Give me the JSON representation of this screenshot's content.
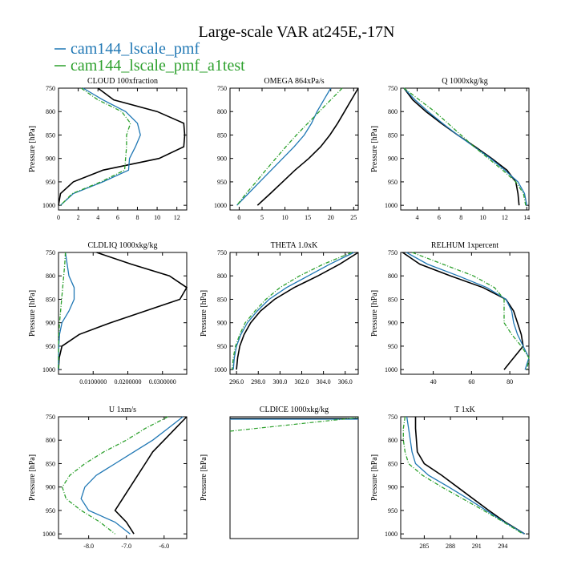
{
  "colors": {
    "black": "#000000",
    "blue": "#1f77b4",
    "green": "#2ca02c"
  },
  "chart_data": {
    "type": "line",
    "title": "Large-scale VAR at245E,-17N",
    "legend": [
      {
        "name": "cam144_lscale_pmf",
        "color": "#1f77b4"
      },
      {
        "name": "cam144_lscale_pmf_a1test",
        "color": "#2ca02c"
      }
    ],
    "pressure_levels": [
      750,
      775,
      800,
      825,
      850,
      875,
      900,
      925,
      950,
      975,
      1000
    ],
    "panels": [
      {
        "title": "CLOUD  100xfraction",
        "ylabel": "Pressure [hPa]",
        "xlim": [
          0,
          13
        ],
        "ylim": [
          750,
          1010
        ],
        "xticks": [
          0,
          2,
          4,
          6,
          8,
          10,
          12
        ],
        "xticklabels": [
          "0",
          "2",
          "4",
          "6",
          "8",
          "10",
          "12"
        ],
        "yticks": [
          750,
          800,
          850,
          900,
          950,
          1000
        ],
        "series": [
          {
            "name": "black",
            "color": "#000000",
            "dashed": false,
            "x": [
              4.0,
              5.6,
              10.0,
              12.7,
              12.8,
              12.7,
              10.2,
              4.5,
              1.5,
              0.2,
              0.0
            ]
          },
          {
            "name": "cam144_lscale_pmf",
            "color": "#1f77b4",
            "dashed": false,
            "x": [
              2.5,
              4.5,
              6.8,
              8.0,
              8.3,
              7.8,
              7.2,
              7.1,
              4.5,
              1.5,
              0.2
            ]
          },
          {
            "name": "cam144_lscale_pmf_a1test",
            "color": "#2ca02c",
            "dashed": true,
            "x": [
              2.3,
              4.0,
              6.4,
              7.3,
              6.9,
              6.9,
              6.8,
              6.7,
              4.3,
              1.4,
              0.2
            ]
          }
        ]
      },
      {
        "title": "OMEGA  864xPa/s",
        "ylabel": "",
        "xlim": [
          -2,
          26
        ],
        "ylim": [
          750,
          1010
        ],
        "xticks": [
          0,
          5,
          10,
          15,
          20,
          25
        ],
        "xticklabels": [
          "0",
          "5",
          "10",
          "15",
          "20",
          "25"
        ],
        "yticks": [
          750,
          800,
          850,
          900,
          950,
          1000
        ],
        "series": [
          {
            "name": "black",
            "color": "#000000",
            "dashed": false,
            "x": [
              26.0,
              24.5,
              23.0,
              21.5,
              19.8,
              17.8,
              15.2,
              12.2,
              9.5,
              6.8,
              4.0
            ]
          },
          {
            "name": "cam144_lscale_pmf",
            "color": "#1f77b4",
            "dashed": false,
            "x": [
              20.0,
              18.5,
              17.0,
              15.8,
              14.2,
              12.0,
              9.5,
              7.0,
              4.5,
              2.0,
              -0.5
            ]
          },
          {
            "name": "cam144_lscale_pmf_a1test",
            "color": "#2ca02c",
            "dashed": true,
            "x": [
              22.5,
              20.0,
              17.5,
              15.0,
              12.5,
              10.2,
              8.0,
              5.8,
              3.7,
              1.5,
              -0.5
            ]
          }
        ]
      },
      {
        "title": "Q  1000xkg/kg",
        "ylabel": "Pressure [hPa]",
        "xlim": [
          2.5,
          14.2
        ],
        "ylim": [
          750,
          1010
        ],
        "xticks": [
          4,
          6,
          8,
          10,
          12,
          14
        ],
        "xticklabels": [
          "4",
          "6",
          "8",
          "10",
          "12",
          "14"
        ],
        "yticks": [
          750,
          800,
          850,
          900,
          950,
          1000
        ],
        "series": [
          {
            "name": "black",
            "color": "#000000",
            "dashed": false,
            "x": [
              2.8,
              3.6,
              4.8,
              6.2,
              7.7,
              9.3,
              10.8,
              12.2,
              13.0,
              13.2,
              13.3
            ]
          },
          {
            "name": "cam144_lscale_pmf",
            "color": "#1f77b4",
            "dashed": false,
            "x": [
              2.8,
              3.8,
              5.0,
              6.3,
              7.7,
              9.2,
              10.7,
              12.0,
              13.2,
              13.8,
              14.0
            ]
          },
          {
            "name": "cam144_lscale_pmf_a1test",
            "color": "#2ca02c",
            "dashed": true,
            "x": [
              2.8,
              4.2,
              5.6,
              6.8,
              8.0,
              9.2,
              10.5,
              11.8,
              13.0,
              13.7,
              13.9
            ]
          }
        ]
      },
      {
        "title": "CLDLIQ  1000xkg/kg",
        "ylabel": "Pressure [hPa]",
        "xlim": [
          0,
          0.037
        ],
        "ylim": [
          750,
          1010
        ],
        "xticks": [
          0.01,
          0.02,
          0.03
        ],
        "xticklabels": [
          "0.0100000",
          "0.0200000",
          "0.0300000"
        ],
        "yticks": [
          750,
          800,
          850,
          900,
          950,
          1000
        ],
        "series": [
          {
            "name": "black",
            "color": "#000000",
            "dashed": false,
            "x": [
              0.011,
              0.021,
              0.032,
              0.037,
              0.035,
              0.025,
              0.015,
              0.006,
              0.001,
              0.0002,
              0.0
            ]
          },
          {
            "name": "cam144_lscale_pmf",
            "color": "#1f77b4",
            "dashed": false,
            "x": [
              0.002,
              0.0025,
              0.003,
              0.0045,
              0.0045,
              0.003,
              0.001,
              0.0003,
              0.0001,
              0.0,
              0.0
            ]
          },
          {
            "name": "cam144_lscale_pmf_a1test",
            "color": "#2ca02c",
            "dashed": true,
            "x": [
              0.002,
              0.0018,
              0.0015,
              0.0012,
              0.0009,
              0.0006,
              0.0003,
              0.0001,
              0.0,
              0.0,
              0.0
            ]
          }
        ]
      },
      {
        "title": "THETA  1.0xK",
        "ylabel": "Pressure [hPa]",
        "xlim": [
          295.4,
          307.2
        ],
        "ylim": [
          750,
          1010
        ],
        "xticks": [
          296,
          298,
          300,
          302,
          304,
          306
        ],
        "xticklabels": [
          "296.0",
          "298.0",
          "300.0",
          "302.0",
          "304.0",
          "306.0"
        ],
        "yticks": [
          750,
          800,
          850,
          900,
          950,
          1000
        ],
        "series": [
          {
            "name": "black",
            "color": "#000000",
            "dashed": false,
            "x": [
              307.2,
              305.5,
              303.5,
              301.3,
              299.5,
              298.2,
              297.3,
              296.7,
              296.3,
              296.1,
              296.0
            ]
          },
          {
            "name": "cam144_lscale_pmf",
            "color": "#1f77b4",
            "dashed": false,
            "x": [
              306.8,
              304.6,
              302.6,
              300.6,
              299.0,
              297.9,
              297.0,
              296.4,
              296.0,
              295.8,
              295.7
            ]
          },
          {
            "name": "cam144_lscale_pmf_a1test",
            "color": "#2ca02c",
            "dashed": true,
            "x": [
              306.6,
              304.0,
              301.8,
              300.0,
              298.7,
              297.7,
              296.8,
              296.3,
              295.9,
              295.7,
              295.6
            ]
          }
        ]
      },
      {
        "title": "RELHUM  1xpercent",
        "ylabel": "Pressure [hPa]",
        "xlim": [
          23,
          90
        ],
        "ylim": [
          750,
          1010
        ],
        "xticks": [
          40,
          60,
          80
        ],
        "xticklabels": [
          "40",
          "60",
          "80"
        ],
        "yticks": [
          750,
          800,
          850,
          900,
          950,
          1000
        ],
        "series": [
          {
            "name": "black",
            "color": "#000000",
            "dashed": false,
            "x": [
              24,
              33,
              49,
              66,
              78,
              82,
              84,
              86,
              87,
              82,
              77
            ]
          },
          {
            "name": "cam144_lscale_pmf",
            "color": "#1f77b4",
            "dashed": false,
            "x": [
              26,
              37,
              53,
              68,
              78,
              81,
              82,
              84,
              87,
              90,
              88
            ]
          },
          {
            "name": "cam144_lscale_pmf_a1test",
            "color": "#2ca02c",
            "dashed": true,
            "x": [
              29,
              45,
              61,
              72,
              77,
              77,
              77,
              81,
              86,
              90,
              89
            ]
          }
        ]
      },
      {
        "title": "U  1xm/s",
        "ylabel": "Pressure [hPa]",
        "xlim": [
          -8.8,
          -5.4
        ],
        "ylim": [
          750,
          1010
        ],
        "xticks": [
          -8,
          -7,
          -6
        ],
        "xticklabels": [
          "-8.0",
          "-7.0",
          "-6.0"
        ],
        "yticks": [
          750,
          800,
          850,
          900,
          950,
          1000
        ],
        "series": [
          {
            "name": "black",
            "color": "#000000",
            "dashed": false,
            "x": [
              -5.4,
              -5.7,
              -6.0,
              -6.3,
              -6.5,
              -6.7,
              -6.9,
              -7.1,
              -7.3,
              -7.0,
              -6.8
            ]
          },
          {
            "name": "cam144_lscale_pmf",
            "color": "#1f77b4",
            "dashed": false,
            "x": [
              -5.5,
              -5.9,
              -6.3,
              -6.8,
              -7.3,
              -7.8,
              -8.1,
              -8.2,
              -8.0,
              -7.3,
              -6.9
            ]
          },
          {
            "name": "cam144_lscale_pmf_a1test",
            "color": "#2ca02c",
            "dashed": true,
            "x": [
              -5.9,
              -6.5,
              -7.0,
              -7.6,
              -8.1,
              -8.5,
              -8.7,
              -8.6,
              -8.2,
              -7.7,
              -7.3
            ]
          }
        ]
      },
      {
        "title": "CLDICE  1000xkg/kg",
        "ylabel": "Pressure [hPa]",
        "xlim": [
          0,
          1
        ],
        "ylim": [
          750,
          1010
        ],
        "xticks": [],
        "xticklabels": [],
        "yticks": [],
        "series": [
          {
            "name": "black",
            "color": "#000000",
            "dashed": false,
            "x": []
          },
          {
            "name": "cam144_lscale_pmf",
            "color": "#1f77b4",
            "dashed": false,
            "x": []
          },
          {
            "name": "cam144_lscale_pmf_a1test",
            "color": "#2ca02c",
            "dashed": true,
            "x": []
          }
        ]
      },
      {
        "title": "T  1xK",
        "ylabel": "Pressure [hPa]",
        "xlim": [
          282.3,
          297.0
        ],
        "ylim": [
          750,
          1010
        ],
        "xticks": [
          285,
          288,
          291,
          294
        ],
        "xticklabels": [
          "285",
          "288",
          "291",
          "294"
        ],
        "yticks": [
          750,
          800,
          850,
          900,
          950,
          1000
        ],
        "series": [
          {
            "name": "black",
            "color": "#000000",
            "dashed": false,
            "x": [
              284.0,
              284.0,
              284.1,
              284.2,
              285.0,
              287.0,
              288.8,
              290.6,
              292.4,
              294.3,
              296.5
            ]
          },
          {
            "name": "cam144_lscale_pmf",
            "color": "#1f77b4",
            "dashed": false,
            "x": [
              283.0,
              283.2,
              283.4,
              283.6,
              284.0,
              285.5,
              287.8,
              290.0,
              292.1,
              294.2,
              296.5
            ]
          },
          {
            "name": "cam144_lscale_pmf_a1test",
            "color": "#2ca02c",
            "dashed": true,
            "x": [
              282.8,
              282.6,
              282.6,
              282.8,
              283.2,
              284.8,
              287.0,
              289.4,
              291.8,
              294.1,
              296.3
            ]
          }
        ]
      }
    ]
  }
}
